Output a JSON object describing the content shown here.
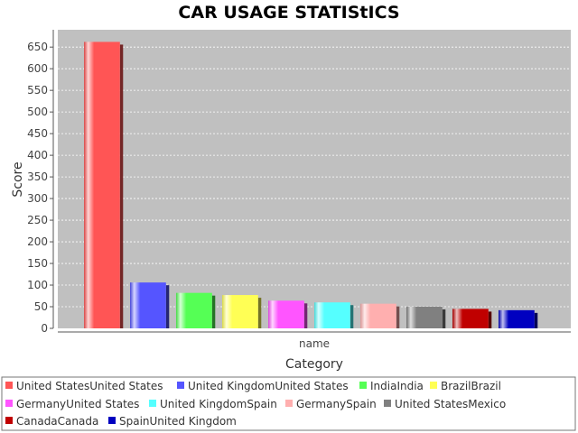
{
  "chart_data": {
    "type": "bar",
    "title": "CAR USAGE STATIStICS",
    "xlabel": "Category",
    "ylabel": "Score",
    "categories": [
      "name"
    ],
    "ylim": [
      0,
      690
    ],
    "yticks": [
      0,
      50,
      100,
      150,
      200,
      250,
      300,
      350,
      400,
      450,
      500,
      550,
      600,
      650
    ],
    "grid": true,
    "legend_position": "bottom",
    "plot_background": "#c0c0c0",
    "series": [
      {
        "name": "United StatesUnited States",
        "values": [
          662
        ],
        "color": "#ff5555"
      },
      {
        "name": "United KingdomUnited States",
        "values": [
          106
        ],
        "color": "#5555ff"
      },
      {
        "name": "IndiaIndia",
        "values": [
          82
        ],
        "color": "#55ff55"
      },
      {
        "name": "BrazilBrazil",
        "values": [
          77
        ],
        "color": "#ffff55"
      },
      {
        "name": "GermanyUnited States",
        "values": [
          64
        ],
        "color": "#ff55ff"
      },
      {
        "name": "United KingdomSpain",
        "values": [
          60
        ],
        "color": "#55ffff"
      },
      {
        "name": "GermanySpain",
        "values": [
          57
        ],
        "color": "#ffafaf"
      },
      {
        "name": "United StatesMexico",
        "values": [
          50
        ],
        "color": "#808080"
      },
      {
        "name": "CanadaCanada",
        "values": [
          45
        ],
        "color": "#c00000"
      },
      {
        "name": "SpainUnited Kingdom",
        "values": [
          42
        ],
        "color": "#0000c0"
      }
    ]
  }
}
